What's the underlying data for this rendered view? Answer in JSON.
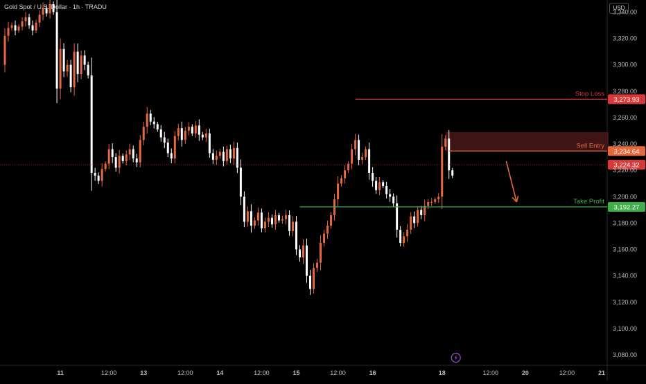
{
  "header": {
    "symbol": "Gold Spot / U.S. Dollar · 1h · TRADU"
  },
  "currency_button": "USD",
  "colors": {
    "bull": "#e5693b",
    "bear": "#ffffff",
    "stop": "#d83a3a",
    "entry": "#e5693b",
    "take_profit": "#3fae49",
    "zone": "#4a1818",
    "axis_text": "#bdbdbd"
  },
  "chart_data": {
    "type": "candlestick",
    "y_axis": {
      "range": [
        3069,
        3346
      ],
      "ticks": [
        3080,
        3100,
        3120,
        3140,
        3160,
        3180,
        3200,
        3220,
        3240,
        3260,
        3280,
        3300,
        3320,
        3340
      ],
      "tick_labels": [
        "3,080.00",
        "3,100.00",
        "3,120.00",
        "3,140.00",
        "3,160.00",
        "3,180.00",
        "3,200.00",
        "3,220.00",
        "3,240.00",
        "3,260.00",
        "3,280.00",
        "3,300.00",
        "3,320.00",
        "3,340.00"
      ]
    },
    "x_axis": {
      "range": [
        0,
        175
      ],
      "labels": [
        {
          "t": 17,
          "text": "11"
        },
        {
          "t": 31,
          "text": "12:00"
        },
        {
          "t": 41,
          "text": "13"
        },
        {
          "t": 53,
          "text": "12:00"
        },
        {
          "t": 63,
          "text": "14"
        },
        {
          "t": 75,
          "text": "12:00"
        },
        {
          "t": 85,
          "text": "15"
        },
        {
          "t": 97,
          "text": "12:00"
        },
        {
          "t": 107,
          "text": "16"
        },
        {
          "t": 127,
          "text": "18"
        },
        {
          "t": 141,
          "text": "12:00"
        },
        {
          "t": 151,
          "text": "20"
        },
        {
          "t": 163,
          "text": "12:00"
        },
        {
          "t": 173,
          "text": "21"
        }
      ]
    },
    "closes": [
      3300,
      3322,
      3328,
      3330,
      3326,
      3329,
      3333,
      3336,
      3330,
      3326,
      3332,
      3338,
      3343,
      3339,
      3346,
      3340,
      3282,
      3312,
      3295,
      3300,
      3283,
      3310,
      3293,
      3307,
      3300,
      3292,
      3218,
      3216,
      3212,
      3221,
      3225,
      3236,
      3230,
      3222,
      3231,
      3227,
      3232,
      3236,
      3229,
      3226,
      3243,
      3253,
      3263,
      3257,
      3255,
      3251,
      3245,
      3241,
      3233,
      3229,
      3246,
      3252,
      3243,
      3250,
      3253,
      3248,
      3254,
      3247,
      3245,
      3248,
      3233,
      3228,
      3231,
      3234,
      3227,
      3236,
      3229,
      3237,
      3222,
      3200,
      3181,
      3189,
      3178,
      3182,
      3188,
      3176,
      3181,
      3184,
      3179,
      3186,
      3182,
      3183,
      3186,
      3174,
      3181,
      3160,
      3154,
      3163,
      3140,
      3130,
      3146,
      3150,
      3165,
      3172,
      3178,
      3186,
      3198,
      3210,
      3214,
      3220,
      3225,
      3236,
      3243,
      3228,
      3230,
      3236,
      3218,
      3212,
      3205,
      3211,
      3208,
      3202,
      3200,
      3195,
      3175,
      3165,
      3170,
      3175,
      3185,
      3180,
      3190,
      3186,
      3193,
      3196,
      3196,
      3198,
      3200,
      3238,
      3244,
      3220,
      3216
    ],
    "sell_zone": {
      "t_start": 128,
      "t_end": 175,
      "top": 3249,
      "bottom": 3234.64
    },
    "levels": [
      {
        "name": "Stop Loss",
        "price": 3273.93,
        "label": "3,273.93",
        "t_start": 102,
        "color_key": "stop"
      },
      {
        "name": "Sell Entry",
        "price": 3234.64,
        "label": "3,234.64",
        "t_start": 129,
        "color_key": "entry"
      },
      {
        "name": "Take Profit",
        "price": 3192.27,
        "label": "3,192.27",
        "t_start": 86,
        "color_key": "take_profit"
      }
    ],
    "current_price": {
      "price": 3224.32,
      "label": "3,224.32"
    },
    "arrow": {
      "from": [
        145.5,
        3227
      ],
      "to": [
        148.5,
        3196
      ]
    }
  }
}
